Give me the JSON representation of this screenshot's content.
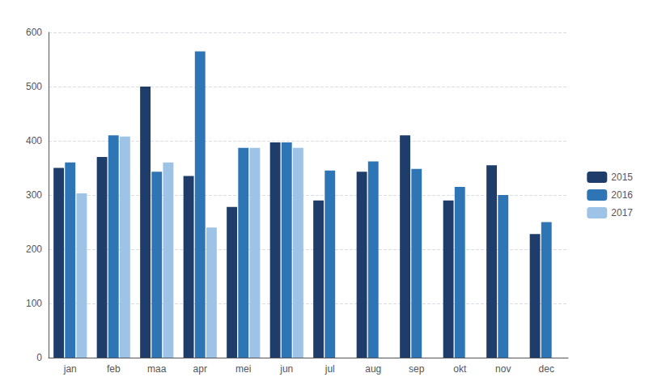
{
  "chart_data": {
    "type": "bar",
    "categories": [
      "jan",
      "feb",
      "maa",
      "apr",
      "mei",
      "jun",
      "jul",
      "aug",
      "sep",
      "okt",
      "nov",
      "dec"
    ],
    "series": [
      {
        "name": "2015",
        "color": "#1F3D6B",
        "values": [
          350,
          370,
          500,
          335,
          278,
          397,
          290,
          343,
          410,
          290,
          355,
          228
        ]
      },
      {
        "name": "2016",
        "color": "#2E75B6",
        "values": [
          360,
          410,
          343,
          565,
          387,
          397,
          345,
          362,
          348,
          315,
          300,
          250
        ]
      },
      {
        "name": "2017",
        "color": "#9DC3E6",
        "values": [
          303,
          408,
          360,
          240,
          387,
          387,
          null,
          null,
          null,
          null,
          null,
          null
        ]
      }
    ],
    "ylim": [
      0,
      600
    ],
    "yticks": [
      0,
      100,
      200,
      300,
      400,
      500,
      600
    ],
    "grid": true,
    "legend": "right"
  }
}
